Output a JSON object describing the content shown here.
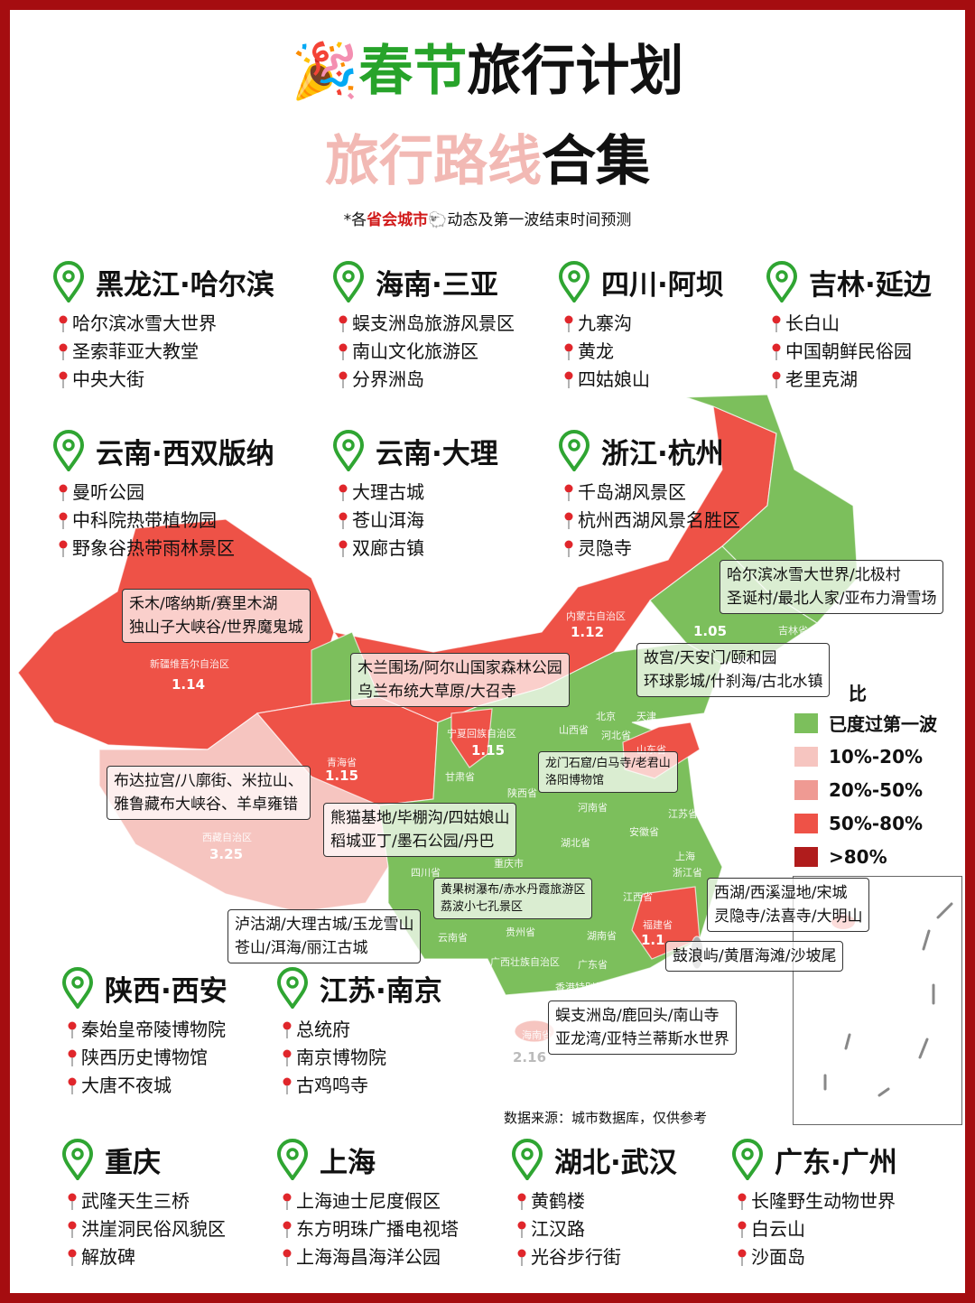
{
  "header": {
    "emoji": "🎉",
    "title_green": "春节",
    "title_black": "旅行计划",
    "subtitle_pink": "旅行路线",
    "subtitle_black": "合集",
    "note_prefix": "*各",
    "note_red": "省会城市",
    "note_icon": "🐑",
    "note_suffix": "动态及第一波结束时间预测"
  },
  "colors": {
    "green": "#7cbf5c",
    "pink_light": "#f6c5c0",
    "pink_mid": "#ef9a93",
    "red": "#ee5247",
    "dark_red": "#b01c1c",
    "title_green": "#27a32a",
    "frame": "#a50d10"
  },
  "sections": [
    {
      "title": "黑龙江·哈尔滨",
      "items": [
        "哈尔滨冰雪大世界",
        "圣索菲亚大教堂",
        "中央大街"
      ]
    },
    {
      "title": "海南·三亚",
      "items": [
        "蜈支洲岛旅游风景区",
        "南山文化旅游区",
        "分界洲岛"
      ]
    },
    {
      "title": "四川·阿坝",
      "items": [
        "九寨沟",
        "黄龙",
        "四姑娘山"
      ]
    },
    {
      "title": "吉林·延边",
      "items": [
        "长白山",
        "中国朝鲜民俗园",
        "老里克湖"
      ]
    },
    {
      "title": "云南·西双版纳",
      "items": [
        "曼听公园",
        "中科院热带植物园",
        "野象谷热带雨林景区"
      ]
    },
    {
      "title": "云南·大理",
      "items": [
        "大理古城",
        "苍山洱海",
        "双廊古镇"
      ]
    },
    {
      "title": "浙江·杭州",
      "items": [
        "千岛湖风景区",
        "杭州西湖风景名胜区",
        "灵隐寺"
      ]
    },
    {
      "title": "陕西·西安",
      "items": [
        "秦始皇帝陵博物院",
        "陕西历史博物馆",
        "大唐不夜城"
      ]
    },
    {
      "title": "江苏·南京",
      "items": [
        "总统府",
        "南京博物院",
        "古鸡鸣寺"
      ]
    },
    {
      "title": "重庆",
      "items": [
        "武隆天生三桥",
        "洪崖洞民俗风貌区",
        "解放碑"
      ]
    },
    {
      "title": "上海",
      "items": [
        "上海迪士尼度假区",
        "东方明珠广播电视塔",
        "上海海昌海洋公园"
      ]
    },
    {
      "title": "湖北·武汉",
      "items": [
        "黄鹤楼",
        "江汉路",
        "光谷步行街"
      ]
    },
    {
      "title": "广东·广州",
      "items": [
        "长隆野生动物世界",
        "白云山",
        "沙面岛"
      ]
    }
  ],
  "map": {
    "provinces": [
      {
        "name": "新疆维吾尔自治区",
        "value": "1.14",
        "level": "50%-80%"
      },
      {
        "name": "西藏自治区",
        "value": "3.25",
        "level": "10%-20%"
      },
      {
        "name": "青海省",
        "value": "1.15",
        "level": "50%-80%"
      },
      {
        "name": "宁夏回族自治区",
        "value": "1.15",
        "level": "50%-80%"
      },
      {
        "name": "内蒙古自治区",
        "value": "1.12",
        "level": "50%-80%"
      },
      {
        "name": "",
        "value": "1.05",
        "level": "已度过第一波"
      },
      {
        "name": "福建省",
        "value": "1.1",
        "level": "50%-80%"
      },
      {
        "name": "海南省",
        "value": "2.16",
        "level": "10%-20%"
      },
      {
        "name": "山东省",
        "value": "",
        "level": "50%-80%"
      }
    ],
    "labels": [
      "吉林省",
      "甘肃省",
      "陕西省",
      "山西省",
      "河北省",
      "北京",
      "天津",
      "河南省",
      "江苏省",
      "安徽省",
      "湖北省",
      "重庆市",
      "四川省",
      "贵州省",
      "湖南省",
      "江西省",
      "浙江省",
      "上海",
      "云南省",
      "广西壮族自治区",
      "广东省",
      "香港特别行政区"
    ],
    "callouts": [
      [
        "禾木/喀纳斯/赛里木湖",
        "独山子大峡谷/世界魔鬼城"
      ],
      [
        "木兰围场/阿尔山国家森林公园",
        "乌兰布统大草原/大召寺"
      ],
      [
        "故宫/天安门/颐和园",
        "环球影城/什刹海/古北水镇"
      ],
      [
        "哈尔滨冰雪大世界/北极村",
        "圣诞村/最北人家/亚布力滑雪场"
      ],
      [
        "龙门石窟/白马寺/老君山",
        "洛阳博物馆"
      ],
      [
        "布达拉宫/八廓街、米拉山、",
        "雅鲁藏布大峡谷、羊卓雍错"
      ],
      [
        "熊猫基地/毕棚沟/四姑娘山",
        "稻城亚丁/墨石公园/丹巴"
      ],
      [
        "西湖/西溪湿地/宋城",
        "灵隐寺/法喜寺/大明山"
      ],
      [
        "黄果树瀑布/赤水丹霞旅游区",
        "荔波小七孔景区"
      ],
      [
        "泸沽湖/大理古城/玉龙雪山",
        "苍山/洱海/丽江古城"
      ],
      [
        "鼓浪屿/黄厝海滩/沙坡尾"
      ],
      [
        "蜈支洲岛/鹿回头/南山寺",
        "亚龙湾/亚特兰蒂斯水世界"
      ]
    ],
    "legend": {
      "title": "比",
      "items": [
        {
          "label": "已度过第一波",
          "color": "#7cbf5c"
        },
        {
          "label": "10%-20%",
          "color": "#f6c5c0"
        },
        {
          "label": "20%-50%",
          "color": "#ef9a93"
        },
        {
          "label": "50%-80%",
          "color": "#ee5247"
        },
        {
          "label": ">80%",
          "color": "#b01c1c"
        }
      ]
    },
    "source": "数据来源：城市数据库，仅供参考"
  }
}
